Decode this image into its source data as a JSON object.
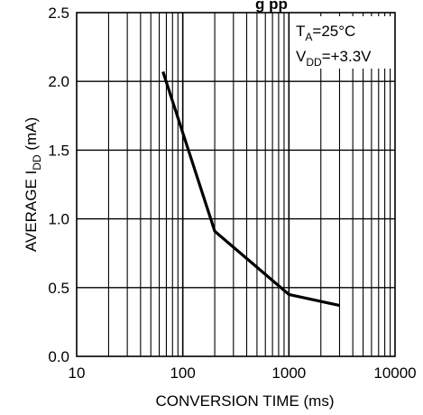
{
  "chart_data": {
    "type": "line",
    "title": "",
    "xlabel": "CONVERSION TIME (ms)",
    "ylabel": "AVERAGE I",
    "ylabel_sub": "DD",
    "ylabel_unit": " (mA)",
    "x_scale": "log",
    "xlim": [
      10,
      10000
    ],
    "ylim": [
      0,
      2.5
    ],
    "x_ticks": [
      "10",
      "100",
      "1000",
      "10000"
    ],
    "y_ticks": [
      "0.0",
      "0.5",
      "1.0",
      "1.5",
      "2.0",
      "2.5"
    ],
    "grid": true,
    "annotations": [
      {
        "main": "T",
        "sub": "A",
        "rest": "=25°C"
      },
      {
        "main": "V",
        "sub": "DD",
        "rest": "=+3.3V"
      }
    ],
    "series": [
      {
        "x": [
          65,
          200,
          1000,
          3000
        ],
        "y": [
          2.07,
          0.91,
          0.45,
          0.37
        ]
      }
    ],
    "header_fragment": "g        pp"
  }
}
